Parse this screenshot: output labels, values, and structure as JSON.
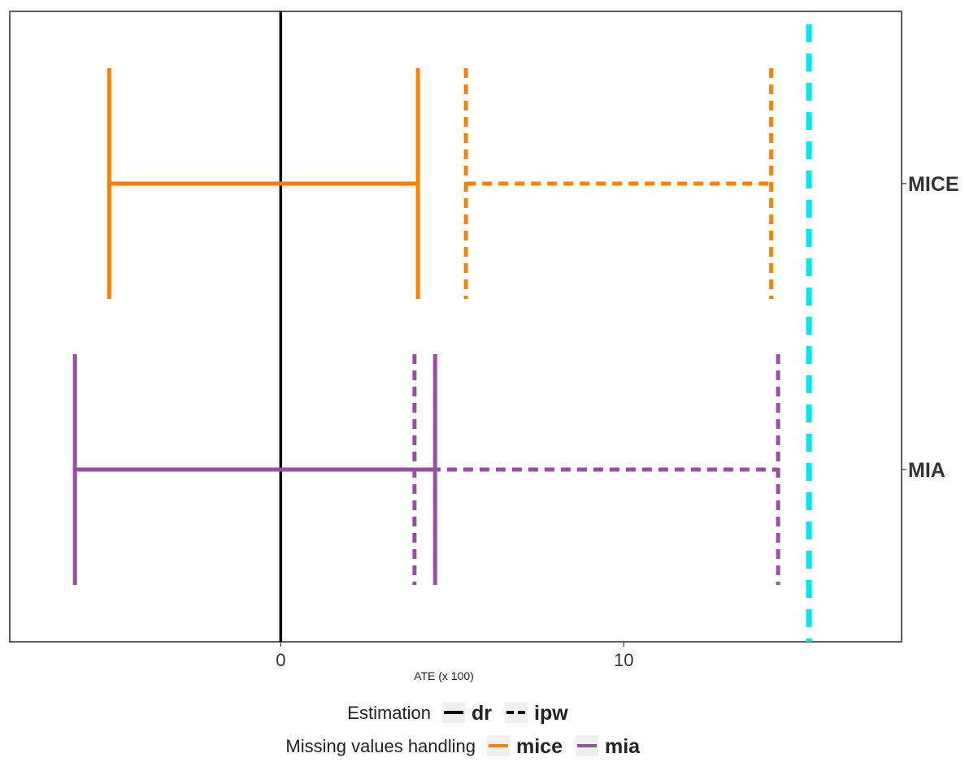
{
  "chart_data": {
    "type": "errorbar",
    "title": "",
    "xlabel": "ATE (x 100)",
    "ylabel": "",
    "xlim": [
      -7.9,
      18.1
    ],
    "x_ticks": [
      0,
      10
    ],
    "x_tick_labels": [
      "0",
      "10"
    ],
    "categories": [
      "MICE",
      "MIA"
    ],
    "grid": false,
    "reference_lines": [
      {
        "x": 0,
        "color": "#000000",
        "style": "solid"
      },
      {
        "x": 15.4,
        "color": "#00E5EE",
        "style": "dashed"
      }
    ],
    "series": [
      {
        "category": "MICE",
        "estimation": "dr",
        "missing": "mice",
        "lower": -5.0,
        "upper": 4.0,
        "color": "#FF7F00",
        "style": "solid"
      },
      {
        "category": "MICE",
        "estimation": "ipw",
        "missing": "mice",
        "lower": 5.4,
        "upper": 14.3,
        "color": "#FF7F00",
        "style": "dashed"
      },
      {
        "category": "MIA",
        "estimation": "dr",
        "missing": "mia",
        "lower": -6.0,
        "upper": 4.5,
        "color": "#984EA3",
        "style": "solid"
      },
      {
        "category": "MIA",
        "estimation": "ipw",
        "missing": "mia",
        "lower": 3.9,
        "upper": 14.5,
        "color": "#984EA3",
        "style": "dashed"
      }
    ],
    "legend": {
      "placement": "bottom",
      "groups": [
        {
          "title": "Estimation",
          "items": [
            {
              "label": "dr",
              "color": "#000000",
              "style": "solid"
            },
            {
              "label": "ipw",
              "color": "#000000",
              "style": "dashed"
            }
          ]
        },
        {
          "title": "Missing values handling",
          "items": [
            {
              "label": "mice",
              "color": "#FF7F00",
              "style": "solid"
            },
            {
              "label": "mia",
              "color": "#984EA3",
              "style": "solid"
            }
          ]
        }
      ]
    }
  }
}
